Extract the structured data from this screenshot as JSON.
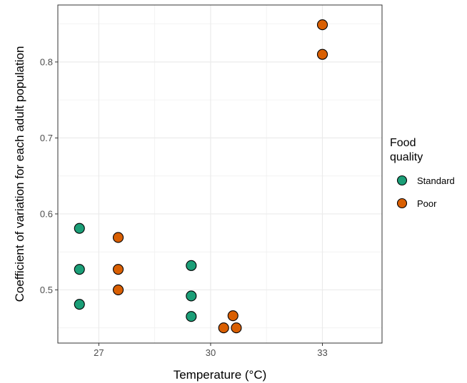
{
  "chart_data": {
    "type": "scatter",
    "xlabel": "Temperature (°C)",
    "ylabel": "Coefficient of variation for each adult population",
    "x_ticks": [
      "27",
      "30",
      "33"
    ],
    "y_ticks": [
      "0.5",
      "0.6",
      "0.7",
      "0.8"
    ],
    "xlim": [
      25.9,
      34.6
    ],
    "ylim": [
      0.43,
      0.875
    ],
    "grid": true,
    "legend": {
      "title": "Food\nquality",
      "placement": "right",
      "entries": [
        {
          "label": "Standard",
          "color": "#1b9e77"
        },
        {
          "label": "Poor",
          "color": "#d95f02"
        }
      ]
    },
    "series": [
      {
        "name": "Standard",
        "color": "#1b9e77",
        "points": [
          {
            "x": 27,
            "y": 0.581
          },
          {
            "x": 27,
            "y": 0.527
          },
          {
            "x": 27,
            "y": 0.481
          },
          {
            "x": 30,
            "y": 0.532
          },
          {
            "x": 30,
            "y": 0.492
          },
          {
            "x": 30,
            "y": 0.465
          }
        ]
      },
      {
        "name": "Poor",
        "color": "#d95f02",
        "points": [
          {
            "x": 27,
            "y": 0.569
          },
          {
            "x": 27,
            "y": 0.527
          },
          {
            "x": 27,
            "y": 0.5
          },
          {
            "x": 30,
            "y": 0.466
          },
          {
            "x": 30,
            "y": 0.45
          },
          {
            "x": 30,
            "y": 0.45
          },
          {
            "x": 33,
            "y": 0.849
          },
          {
            "x": 33,
            "y": 0.81
          }
        ]
      }
    ]
  }
}
